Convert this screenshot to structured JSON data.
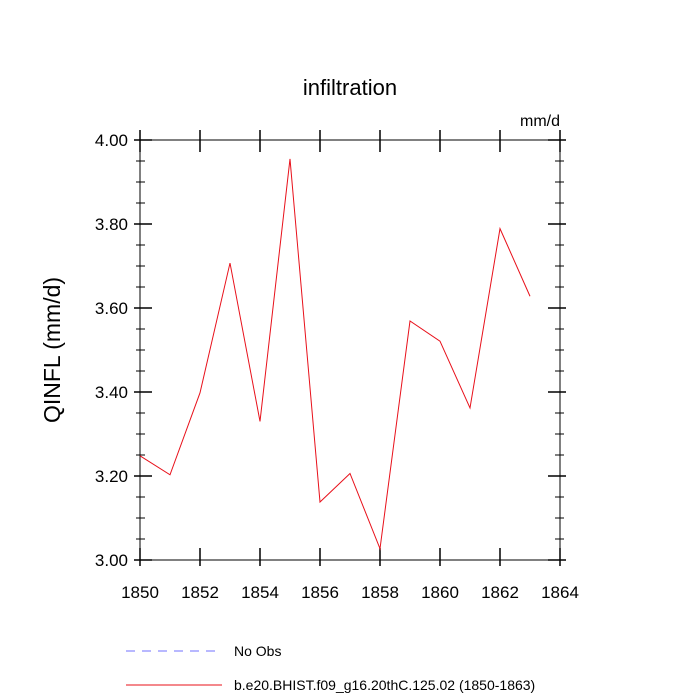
{
  "chart_data": {
    "type": "line",
    "title": "infiltration",
    "units_label": "mm/d",
    "ylabel": "QINFL  (mm/d)",
    "xlabel": "",
    "xlim": [
      1850,
      1864
    ],
    "ylim": [
      3.0,
      4.0
    ],
    "x_ticks": [
      1850,
      1852,
      1854,
      1856,
      1858,
      1860,
      1862,
      1864
    ],
    "y_ticks": [
      3.0,
      3.2,
      3.4,
      3.6,
      3.8,
      4.0
    ],
    "y_tick_labels": [
      "3.00",
      "3.20",
      "3.40",
      "3.60",
      "3.80",
      "4.00"
    ],
    "grid": false,
    "series": [
      {
        "name": "b.e20.BHIST.f09_g16.20thC.125.02 (1850-1863)",
        "color": "#e8101a",
        "dash": "solid",
        "x": [
          1850,
          1851,
          1852,
          1853,
          1854,
          1855,
          1856,
          1857,
          1858,
          1859,
          1860,
          1861,
          1862,
          1863
        ],
        "values": [
          3.248,
          3.203,
          3.398,
          3.707,
          3.33,
          3.955,
          3.138,
          3.206,
          3.027,
          3.569,
          3.521,
          3.362,
          3.789,
          3.628
        ]
      },
      {
        "name": "No Obs",
        "color": "#7070ff",
        "dash": "dashed",
        "x": [],
        "values": []
      }
    ],
    "legend": {
      "placement": "bottom-left",
      "entries": [
        "No Obs",
        "b.e20.BHIST.f09_g16.20thC.125.02 (1850-1863)"
      ]
    }
  }
}
